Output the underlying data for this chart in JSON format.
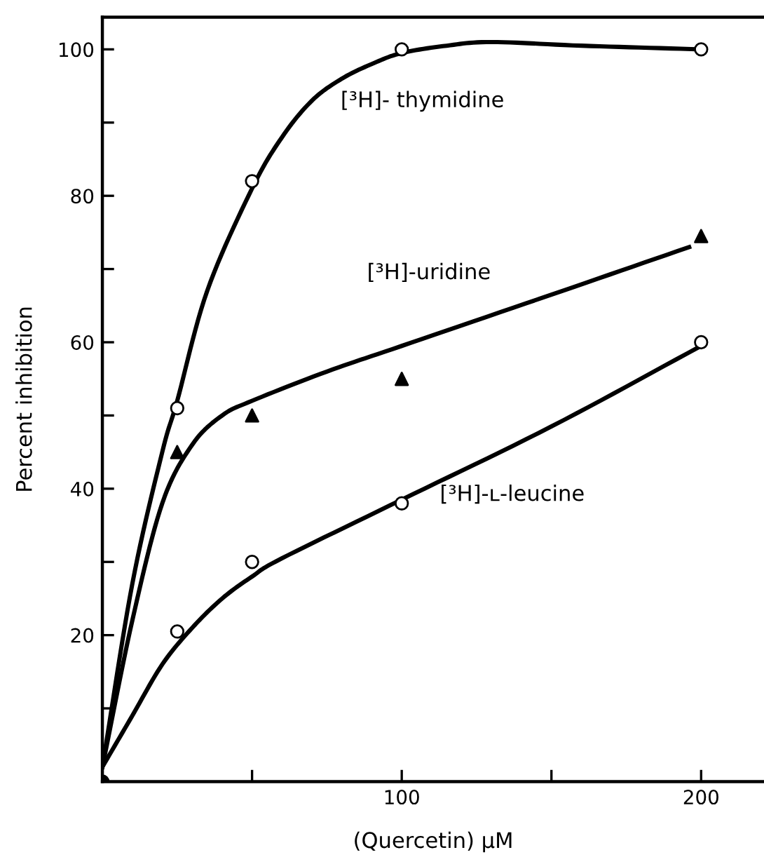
{
  "chart_data": {
    "type": "scatter",
    "xlabel": "(Quercetin) μM",
    "ylabel": "Percent inhibition",
    "xlim": [
      0,
      221
    ],
    "ylim": [
      0,
      104.4
    ],
    "xticks": [
      {
        "value": 50,
        "label": null
      },
      100,
      {
        "value": 150,
        "label": null
      },
      200
    ],
    "yticks": [
      {
        "value": 10,
        "label": null
      },
      20,
      {
        "value": 30,
        "label": null
      },
      40,
      {
        "value": 50,
        "label": null
      },
      60,
      {
        "value": 70,
        "label": null
      },
      80,
      {
        "value": 90,
        "label": null
      },
      100
    ],
    "grid": false,
    "legend": false,
    "series": [
      {
        "type": "line",
        "color": "#000000",
        "marker": "none",
        "line_style": "solid",
        "x": [
          0,
          10,
          20,
          25,
          35,
          50,
          60,
          70,
          80,
          90,
          100,
          115,
          130,
          160,
          200
        ],
        "values": [
          2,
          27,
          45,
          52,
          67,
          81,
          88,
          93,
          96,
          98,
          99.5,
          100.5,
          101,
          100.5,
          100
        ]
      },
      {
        "type": "line",
        "color": "#000000",
        "marker": "none",
        "line_style": "solid",
        "x": [
          0,
          10,
          20,
          30,
          40,
          50,
          75,
          100,
          150,
          196
        ],
        "values": [
          2,
          22,
          38,
          46,
          50,
          52,
          56,
          59.5,
          66.5,
          73
        ]
      },
      {
        "type": "line",
        "color": "#000000",
        "marker": "none",
        "line_style": "solid",
        "x": [
          0,
          10,
          20,
          30,
          40,
          50,
          60,
          100,
          150,
          200
        ],
        "values": [
          2,
          9,
          16,
          21,
          25,
          28,
          30.5,
          38.5,
          48.5,
          59.5
        ]
      },
      {
        "color": "#ffffff",
        "marker": "circle",
        "x": [
          25,
          50,
          100,
          200
        ],
        "values": [
          51,
          82,
          100,
          100
        ]
      },
      {
        "color": "#000000",
        "marker": "triangle",
        "x": [
          25,
          50,
          100,
          200
        ],
        "values": [
          45,
          50,
          55,
          74.5
        ]
      },
      {
        "color": "#ffffff",
        "marker": "circle",
        "x": [
          25,
          50,
          100,
          200
        ],
        "values": [
          20.5,
          30,
          38,
          60
        ]
      },
      {
        "color": "#000000",
        "marker": "circle",
        "x": [
          0
        ],
        "values": [
          0
        ]
      }
    ],
    "annotations": [
      "[³H]- thymidine",
      "[³H]-uridine",
      "[³H]-ʟ-leucine"
    ]
  }
}
